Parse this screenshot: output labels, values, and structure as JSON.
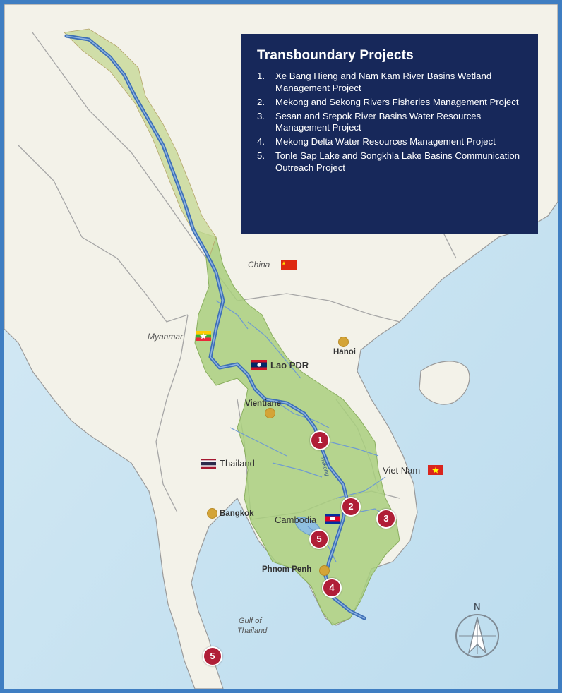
{
  "legend": {
    "title": "Transboundary Projects",
    "items": [
      {
        "num": "1.",
        "text": "Xe Bang Hieng and Nam Kam River Basins Wetland Management Project"
      },
      {
        "num": "2.",
        "text": "Mekong and Sekong Rivers Fisheries Management Project"
      },
      {
        "num": "3.",
        "text": "Sesan and Srepok River Basins Water Resources Management Project"
      },
      {
        "num": "4.",
        "text": "Mekong Delta Water Resources Management Project"
      },
      {
        "num": "5.",
        "text": "Tonle Sap Lake and Songkhla Lake Basins Communication Outreach Project"
      }
    ]
  },
  "countries": {
    "china": "China",
    "myanmar": "Myanmar",
    "lao": "Lao PDR",
    "thailand": "Thailand",
    "vietnam": "Viet Nam",
    "cambodia": "Cambodia"
  },
  "cities": {
    "hanoi": "Hanoi",
    "vientiane": "Vientiane",
    "bangkok": "Bangkok",
    "phnom_penh": "Phnom Penh"
  },
  "water": {
    "gulf_line1": "Gulf of",
    "gulf_line2": "Thailand",
    "mekong": "Mekong"
  },
  "markers": [
    "1",
    "2",
    "3",
    "4",
    "5",
    "5"
  ],
  "compass": {
    "north": "N"
  },
  "colors": {
    "frame": "#3f7ec2",
    "legend_bg": "#17285a",
    "marker": "#b01e37",
    "city_dot": "#d4a437",
    "river": "#3d6fb5",
    "basin": "#a8cf7c",
    "sea": "#c9e3f1",
    "land": "#f2f1e8"
  }
}
